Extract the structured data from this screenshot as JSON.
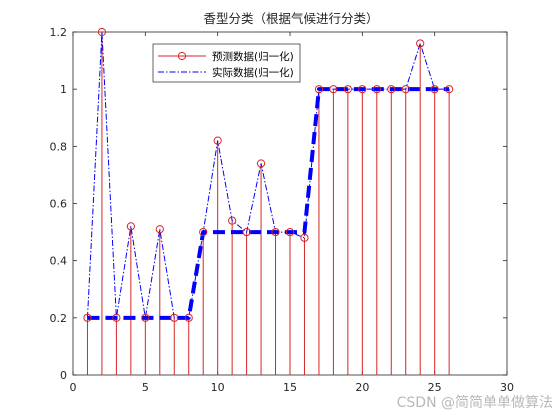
{
  "chart_data": {
    "type": "line",
    "title": "香型分类（根据气候进行分类）",
    "xlabel": "",
    "ylabel": "",
    "xlim": [
      0,
      30
    ],
    "ylim": [
      0,
      1.2
    ],
    "xticks": [
      "0",
      "5",
      "10",
      "15",
      "20",
      "25",
      "30"
    ],
    "yticks": [
      "0",
      "0.2",
      "0.4",
      "0.6",
      "0.8",
      "1",
      "1.2"
    ],
    "grid": false,
    "legend_position": "top-left",
    "x": [
      1,
      2,
      3,
      4,
      5,
      6,
      7,
      8,
      9,
      10,
      11,
      12,
      13,
      14,
      15,
      16,
      17,
      18,
      19,
      20,
      21,
      22,
      23,
      24,
      25,
      26
    ],
    "series": [
      {
        "name": "预测数据(归一化)",
        "style": "stem-circle",
        "color": "#d62728",
        "values": [
          0.2,
          1.2,
          0.2,
          0.52,
          0.2,
          0.51,
          0.2,
          0.2,
          0.5,
          0.82,
          0.54,
          0.5,
          0.74,
          0.5,
          0.5,
          0.48,
          1.0,
          1.0,
          1.0,
          1.0,
          1.0,
          1.0,
          1.0,
          1.16,
          1.0,
          1.0
        ]
      },
      {
        "name": "实际数据(归一化)",
        "style": "dash-dot",
        "color": "#0000ff",
        "values": [
          0.2,
          0.2,
          0.2,
          0.2,
          0.2,
          0.2,
          0.2,
          0.2,
          0.5,
          0.5,
          0.5,
          0.5,
          0.5,
          0.5,
          0.5,
          0.5,
          1.0,
          1.0,
          1.0,
          1.0,
          1.0,
          1.0,
          1.0,
          1.0,
          1.0,
          1.0
        ]
      }
    ]
  },
  "watermark": "CSDN @简简单单做算法"
}
